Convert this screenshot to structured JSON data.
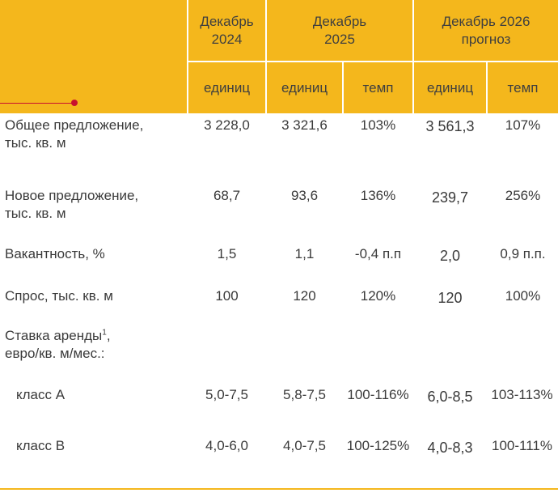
{
  "header": {
    "col1": "Декабрь\n2024",
    "col2": "Декабрь\n2025",
    "col3": "Декабрь 2026\nпрогноз",
    "sub1": "единиц",
    "sub2": "единиц",
    "sub3": "темп",
    "sub4": "единиц",
    "sub5": "темп"
  },
  "colors": {
    "header_bg": "#f4b71c",
    "accent_line": "#c8102e",
    "bottom_rule": "#f4b71c"
  },
  "rows": [
    {
      "label": "Общее предложение,\nтыс. кв. м",
      "v1": "3 228,0",
      "v2": "3 321,6",
      "v3": "103%",
      "v4": "3 561,3",
      "v5": "107%"
    },
    {
      "label": "Новое предложение,\nтыс. кв. м",
      "v1": "68,7",
      "v2": "93,6",
      "v3": "136%",
      "v4": "239,7",
      "v5": "256%"
    },
    {
      "label": "Вакантность, %",
      "v1": "1,5",
      "v2": "1,1",
      "v3": "-0,4 п.п",
      "v4": "2,0",
      "v5": "0,9 п.п."
    },
    {
      "label": "Спрос, тыс. кв. м",
      "v1": "100",
      "v2": "120",
      "v3": "120%",
      "v4": "120",
      "v5": "100%"
    },
    {
      "label": "класс А",
      "v1": "5,0-7,5",
      "v2": "5,8-7,5",
      "v3": "100-116%",
      "v4": "6,0-8,5",
      "v5": "103-113%"
    },
    {
      "label": "класс В",
      "v1": "4,0-6,0",
      "v2": "4,0-7,5",
      "v3": "100-125%",
      "v4": "4,0-8,3",
      "v5": "100-111%"
    }
  ],
  "rent": {
    "label_a": "Ставка аренды",
    "footnote": "1",
    "label_b": ",",
    "label_c": "евро/кв. м/мес.:"
  }
}
